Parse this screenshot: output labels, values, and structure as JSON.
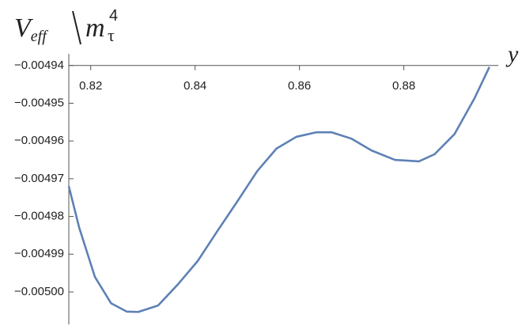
{
  "chart_data": {
    "type": "line",
    "ylabel": {
      "symbol": "V",
      "subscript": "eff",
      "divisor": "m",
      "divisor_subscript": "τ",
      "divisor_power": "4"
    },
    "xlabel": "y",
    "x": [
      0.8158,
      0.8178,
      0.8208,
      0.8239,
      0.8269,
      0.8291,
      0.8329,
      0.8367,
      0.8405,
      0.8442,
      0.8481,
      0.8519,
      0.8556,
      0.8594,
      0.8632,
      0.8662,
      0.87,
      0.8738,
      0.8783,
      0.8829,
      0.8859,
      0.8897,
      0.8935,
      0.8964
    ],
    "series": [
      {
        "color": "#5e81b5",
        "values": [
          -0.004972,
          -0.004983,
          -0.004996,
          -0.005003,
          -0.0050052,
          -0.0050053,
          -0.0050036,
          -0.004998,
          -0.0049918,
          -0.004984,
          -0.004976,
          -0.004968,
          -0.004962,
          -0.0049589,
          -0.0049577,
          -0.0049577,
          -0.0049594,
          -0.0049625,
          -0.004965,
          -0.0049654,
          -0.0049635,
          -0.0049582,
          -0.0049488,
          -0.0049404
        ]
      }
    ],
    "xlim": [
      0.8158,
      0.8981
    ],
    "ylim": [
      -0.0050086,
      -0.0049369
    ],
    "axes_origin": [
      0.8158,
      -0.00494
    ],
    "xticks": [
      0.82,
      0.84,
      0.86,
      0.88
    ],
    "yticks": [
      {
        "value": -0.00494,
        "label": "−0.00494"
      },
      {
        "value": -0.00495,
        "label": "−0.00495"
      },
      {
        "value": -0.00496,
        "label": "−0.00496"
      },
      {
        "value": -0.00497,
        "label": "−0.00497"
      },
      {
        "value": -0.00498,
        "label": "−0.00498"
      },
      {
        "value": -0.00499,
        "label": "−0.00499"
      },
      {
        "value": -0.005,
        "label": "−0.00500"
      }
    ],
    "grid": false
  }
}
